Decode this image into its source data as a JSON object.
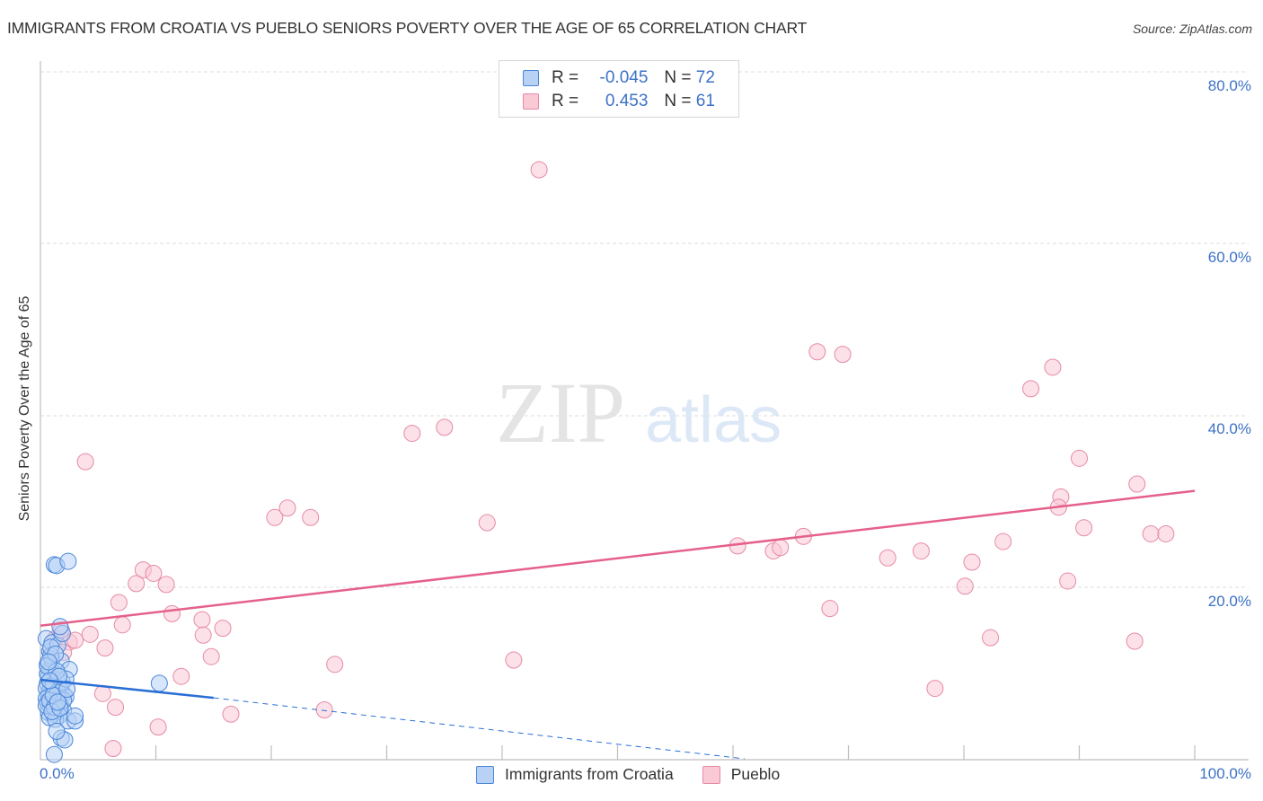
{
  "header": {
    "title": "IMMIGRANTS FROM CROATIA VS PUEBLO SENIORS POVERTY OVER THE AGE OF 65 CORRELATION CHART",
    "source": "Source: ZipAtlas.com"
  },
  "watermark": {
    "zip": "ZIP",
    "atlas": "atlas"
  },
  "colors": {
    "croatia_fill": "#b7d2f5",
    "croatia_stroke": "#4a86d8",
    "croatia_line": "#2a6fd6",
    "pueblo_fill": "#f9c9d6",
    "pueblo_stroke": "#e68aa5",
    "pueblo_line": "#e5608a",
    "axis_text": "#3d72c6",
    "grid": "#dddddd"
  },
  "legend": {
    "rows": [
      {
        "r_label": "R =",
        "r_value": "-0.045",
        "n_label": "N =",
        "n_value": "72",
        "series": "Immigrants from Croatia"
      },
      {
        "r_label": "R =",
        "r_value": " 0.453",
        "n_label": "N =",
        "n_value": "61",
        "series": "Pueblo"
      }
    ]
  },
  "bottom_legend": {
    "items": [
      {
        "label": "Immigrants from Croatia"
      },
      {
        "label": "Pueblo"
      }
    ]
  },
  "axes": {
    "ylabel": "Seniors Poverty Over the Age of 65",
    "yticks": [
      "80.0%",
      "60.0%",
      "40.0%",
      "20.0%"
    ],
    "xticks": [
      "0.0%",
      "100.0%"
    ]
  },
  "chart_data": {
    "type": "scatter",
    "title": "IMMIGRANTS FROM CROATIA VS PUEBLO SENIORS POVERTY OVER THE AGE OF 65 CORRELATION CHART",
    "xlabel": "",
    "ylabel": "Seniors Poverty Over the Age of 65",
    "xlim": [
      0,
      100
    ],
    "ylim": [
      0,
      80
    ],
    "grid": true,
    "legend_position": "top-center",
    "series": [
      {
        "name": "Immigrants from Croatia",
        "R": -0.045,
        "N": 72,
        "trend": {
          "x": [
            0,
            15
          ],
          "y": [
            9.2,
            7.1
          ],
          "dashed_extension": {
            "x": [
              15,
              61
            ],
            "y": [
              7.1,
              0.0
            ]
          }
        },
        "points": [
          [
            0.5,
            14.0
          ],
          [
            0.8,
            12.5
          ],
          [
            1.0,
            13.5
          ],
          [
            0.6,
            11.0
          ],
          [
            0.9,
            10.5
          ],
          [
            1.2,
            10.0
          ],
          [
            0.7,
            9.5
          ],
          [
            1.1,
            9.0
          ],
          [
            1.4,
            9.2
          ],
          [
            0.6,
            8.8
          ],
          [
            0.9,
            8.5
          ],
          [
            1.5,
            8.3
          ],
          [
            1.8,
            8.0
          ],
          [
            0.8,
            7.9
          ],
          [
            1.3,
            7.6
          ],
          [
            2.0,
            7.5
          ],
          [
            0.7,
            7.3
          ],
          [
            1.0,
            7.0
          ],
          [
            1.6,
            6.9
          ],
          [
            2.2,
            7.2
          ],
          [
            0.6,
            6.6
          ],
          [
            1.2,
            6.4
          ],
          [
            1.7,
            6.3
          ],
          [
            0.9,
            6.0
          ],
          [
            1.4,
            5.8
          ],
          [
            2.0,
            5.6
          ],
          [
            0.7,
            5.4
          ],
          [
            1.1,
            5.2
          ],
          [
            1.6,
            5.0
          ],
          [
            0.8,
            4.8
          ],
          [
            1.3,
            4.6
          ],
          [
            2.4,
            4.4
          ],
          [
            0.5,
            8.2
          ],
          [
            0.5,
            7.0
          ],
          [
            0.5,
            6.2
          ],
          [
            0.6,
            9.9
          ],
          [
            1.0,
            11.6
          ],
          [
            1.8,
            11.4
          ],
          [
            2.5,
            10.4
          ],
          [
            1.5,
            13.2
          ],
          [
            1.9,
            14.6
          ],
          [
            1.7,
            15.4
          ],
          [
            1.2,
            22.6
          ],
          [
            1.4,
            22.5
          ],
          [
            2.4,
            23.0
          ],
          [
            1.8,
            2.4
          ],
          [
            2.1,
            2.2
          ],
          [
            1.4,
            3.2
          ],
          [
            3.0,
            4.4
          ],
          [
            3.0,
            5.0
          ],
          [
            1.2,
            0.5
          ],
          [
            10.3,
            8.8
          ],
          [
            0.9,
            12.0
          ],
          [
            1.1,
            8.6
          ],
          [
            1.5,
            7.8
          ],
          [
            0.8,
            6.8
          ],
          [
            1.2,
            6.0
          ],
          [
            1.0,
            5.5
          ],
          [
            1.9,
            8.9
          ],
          [
            2.2,
            9.3
          ],
          [
            0.6,
            10.8
          ],
          [
            1.4,
            10.2
          ],
          [
            0.9,
            13.0
          ],
          [
            1.3,
            12.2
          ],
          [
            2.0,
            6.8
          ],
          [
            1.6,
            9.6
          ],
          [
            0.7,
            11.3
          ],
          [
            1.1,
            7.4
          ],
          [
            1.7,
            5.9
          ],
          [
            2.3,
            8.1
          ],
          [
            0.8,
            9.1
          ],
          [
            1.5,
            6.6
          ]
        ]
      },
      {
        "name": "Pueblo",
        "R": 0.453,
        "N": 61,
        "trend": {
          "x": [
            0,
            100
          ],
          "y": [
            15.5,
            31.2
          ]
        },
        "points": [
          [
            43.2,
            68.6
          ],
          [
            3.9,
            34.6
          ],
          [
            32.2,
            37.9
          ],
          [
            35.0,
            38.6
          ],
          [
            67.3,
            47.4
          ],
          [
            69.5,
            47.1
          ],
          [
            85.8,
            43.1
          ],
          [
            87.7,
            45.6
          ],
          [
            90.0,
            35.0
          ],
          [
            95.0,
            32.0
          ],
          [
            88.4,
            30.5
          ],
          [
            88.2,
            29.3
          ],
          [
            90.4,
            26.9
          ],
          [
            96.2,
            26.2
          ],
          [
            97.5,
            26.2
          ],
          [
            20.3,
            28.1
          ],
          [
            21.4,
            29.2
          ],
          [
            23.4,
            28.1
          ],
          [
            38.7,
            27.5
          ],
          [
            60.4,
            24.8
          ],
          [
            63.5,
            24.2
          ],
          [
            64.1,
            24.6
          ],
          [
            66.1,
            25.9
          ],
          [
            76.3,
            24.2
          ],
          [
            73.4,
            23.4
          ],
          [
            83.4,
            25.3
          ],
          [
            80.7,
            22.9
          ],
          [
            8.9,
            22.0
          ],
          [
            9.8,
            21.6
          ],
          [
            8.3,
            20.4
          ],
          [
            10.9,
            20.3
          ],
          [
            80.1,
            20.1
          ],
          [
            89.0,
            20.7
          ],
          [
            6.8,
            18.2
          ],
          [
            68.4,
            17.5
          ],
          [
            77.5,
            8.2
          ],
          [
            11.4,
            16.9
          ],
          [
            7.1,
            15.6
          ],
          [
            14.0,
            16.2
          ],
          [
            15.8,
            15.2
          ],
          [
            14.1,
            14.4
          ],
          [
            4.3,
            14.5
          ],
          [
            1.3,
            14.0
          ],
          [
            2.5,
            13.6
          ],
          [
            3.0,
            13.8
          ],
          [
            5.6,
            12.9
          ],
          [
            2.0,
            12.4
          ],
          [
            14.8,
            11.9
          ],
          [
            25.5,
            11.0
          ],
          [
            41.0,
            11.5
          ],
          [
            82.3,
            14.1
          ],
          [
            94.8,
            13.7
          ],
          [
            12.2,
            9.6
          ],
          [
            5.4,
            7.6
          ],
          [
            6.5,
            6.0
          ],
          [
            16.5,
            5.2
          ],
          [
            24.6,
            5.7
          ],
          [
            10.2,
            3.7
          ],
          [
            6.3,
            1.2
          ],
          [
            0.9,
            12.0
          ],
          [
            1.8,
            15.0
          ]
        ]
      }
    ]
  }
}
